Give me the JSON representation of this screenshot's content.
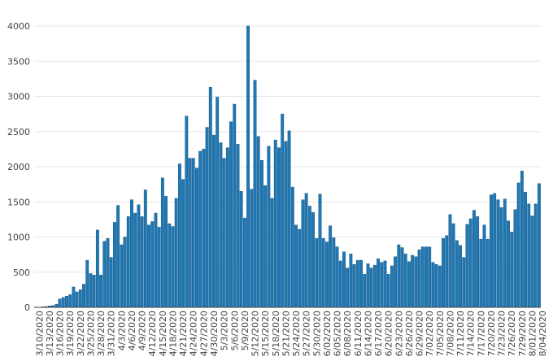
{
  "chart_data": {
    "type": "bar",
    "bar_color": "#1f77b4",
    "bar_edge_color": "#0d4f7a",
    "grid": true,
    "legend": "none",
    "ylim": [
      0,
      4000
    ],
    "y_ticks": [
      0,
      500,
      1000,
      1500,
      2000,
      2500,
      3000,
      3500,
      4000
    ],
    "y_tick_labels": [
      "0",
      "500",
      "1000",
      "1500",
      "2000",
      "2500",
      "3000",
      "3500",
      "4000"
    ],
    "x_tick_labels": [
      "3/10/2020",
      "3/13/2020",
      "3/16/2020",
      "3/19/2020",
      "3/22/2020",
      "3/25/2020",
      "3/28/2020",
      "3/31/2020",
      "4/3/2020",
      "4/6/2020",
      "4/9/2020",
      "4/12/2020",
      "4/15/2020",
      "4/18/2020",
      "4/21/2020",
      "4/24/2020",
      "4/27/2020",
      "4/30/2020",
      "5/3/2020",
      "5/6/2020",
      "5/9/2020",
      "5/12/2020",
      "5/15/2020",
      "5/18/2020",
      "5/21/2020",
      "5/24/2020",
      "5/27/2020",
      "5/30/2020",
      "6/02/2020",
      "6/05/2020",
      "6/08/2020",
      "6/11/2020",
      "6/14/2020",
      "6/17/2020",
      "6/20/2020",
      "6/23/2020",
      "6/26/2020",
      "6/29/2020",
      "7/02/2020",
      "7/05/2020",
      "7/08/2020",
      "7/11/2020",
      "7/14/2020",
      "7/17/2020",
      "7/20/2020",
      "7/23/2020",
      "7/26/2020",
      "7/29/2020",
      "8/01/2020",
      "8/04/2020"
    ],
    "values": [
      5,
      3,
      8,
      12,
      20,
      25,
      45,
      120,
      140,
      160,
      180,
      290,
      220,
      250,
      330,
      670,
      480,
      460,
      1100,
      460,
      940,
      980,
      710,
      1210,
      1450,
      890,
      1000,
      1290,
      1530,
      1340,
      1460,
      1290,
      1670,
      1170,
      1220,
      1340,
      1140,
      1840,
      1580,
      1190,
      1150,
      1550,
      2040,
      1820,
      2720,
      2120,
      2120,
      1980,
      2220,
      2250,
      2560,
      3130,
      2450,
      2990,
      2340,
      2120,
      2270,
      2640,
      2890,
      2320,
      1650,
      1270,
      4000,
      1680,
      3230,
      2430,
      2090,
      1730,
      2290,
      1550,
      2380,
      2270,
      2750,
      2360,
      2510,
      1710,
      1170,
      1110,
      1530,
      1620,
      1440,
      1350,
      980,
      1610,
      980,
      930,
      1160,
      990,
      860,
      660,
      790,
      560,
      760,
      610,
      670,
      670,
      470,
      620,
      560,
      600,
      690,
      640,
      660,
      470,
      590,
      720,
      890,
      850,
      760,
      650,
      740,
      720,
      820,
      860,
      860,
      860,
      640,
      610,
      590,
      980,
      1020,
      1320,
      1190,
      950,
      880,
      710,
      1180,
      1260,
      1380,
      1290,
      970,
      1170,
      970,
      1600,
      1620,
      1530,
      1420,
      1540,
      1230,
      1070,
      1390,
      1770,
      1940,
      1640,
      1470,
      1300,
      1470,
      1760
    ]
  }
}
